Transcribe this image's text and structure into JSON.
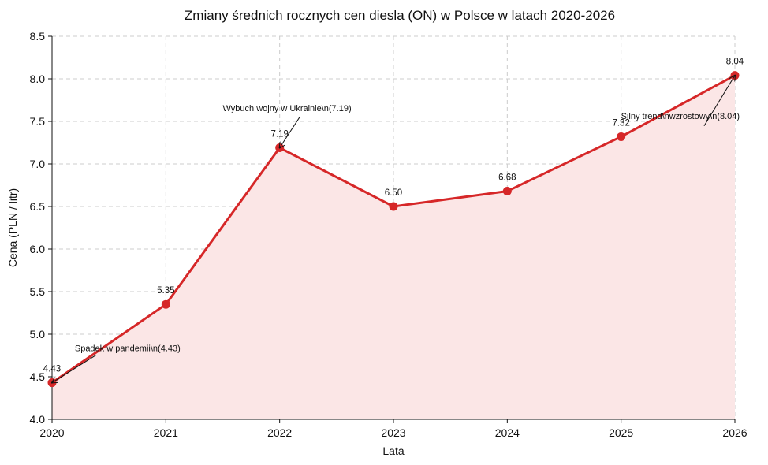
{
  "chart_data": {
    "type": "line",
    "title": "Zmiany średnich rocznych cen diesla (ON) w Polsce w latach 2020-2026",
    "xlabel": "Lata",
    "ylabel": "Cena (PLN / litr)",
    "x": [
      2020,
      2021,
      2022,
      2023,
      2024,
      2025,
      2026
    ],
    "xlim": [
      2020,
      2026
    ],
    "ylim": [
      4.0,
      8.5
    ],
    "xticks": [
      "2020",
      "2021",
      "2022",
      "2023",
      "2024",
      "2025",
      "2026"
    ],
    "yticks": [
      "4.0",
      "4.5",
      "5.0",
      "5.5",
      "6.0",
      "6.5",
      "7.0",
      "7.5",
      "8.0",
      "8.5"
    ],
    "grid": true,
    "area_fill": true,
    "series": [
      {
        "values": [
          4.43,
          5.35,
          7.19,
          6.5,
          6.68,
          7.32,
          8.04
        ],
        "labels": [
          "4.43",
          "5.35",
          "7.19",
          "6.50",
          "6.68",
          "7.32",
          "8.04"
        ],
        "color": "#d62728",
        "fill_color": "#fbe6e6"
      }
    ],
    "annotations": [
      {
        "text": "Spadek w pandemii\\n(4.43)",
        "x": 2020,
        "y": 4.43,
        "text_x": 2020.2,
        "text_y": 4.8
      },
      {
        "text": "Wybuch wojny w Ukrainie\\n(7.19)",
        "x": 2022,
        "y": 7.19,
        "text_x": 2021.5,
        "text_y": 7.62
      },
      {
        "text": "Silny trend\\nwzrostowy\\n(8.04)",
        "x": 2026,
        "y": 8.04,
        "text_x": 2025,
        "text_y": 7.53
      }
    ]
  }
}
